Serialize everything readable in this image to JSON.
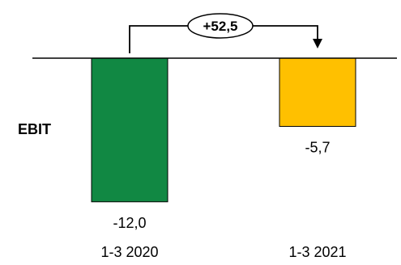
{
  "chart_data": {
    "type": "bar",
    "row_label": "EBIT",
    "categories": [
      "1-3 2020",
      "1-3 2021"
    ],
    "values": [
      -12.0,
      -5.7
    ],
    "value_labels": [
      "-12,0",
      "-5,7"
    ],
    "colors": [
      "#118843",
      "#FFC000"
    ],
    "ylim": [
      -13.5,
      0
    ],
    "axis_color": "#000000",
    "change_annotation": {
      "label": "+52,5",
      "from_category": "1-3 2020",
      "to_category": "1-3 2021"
    }
  }
}
